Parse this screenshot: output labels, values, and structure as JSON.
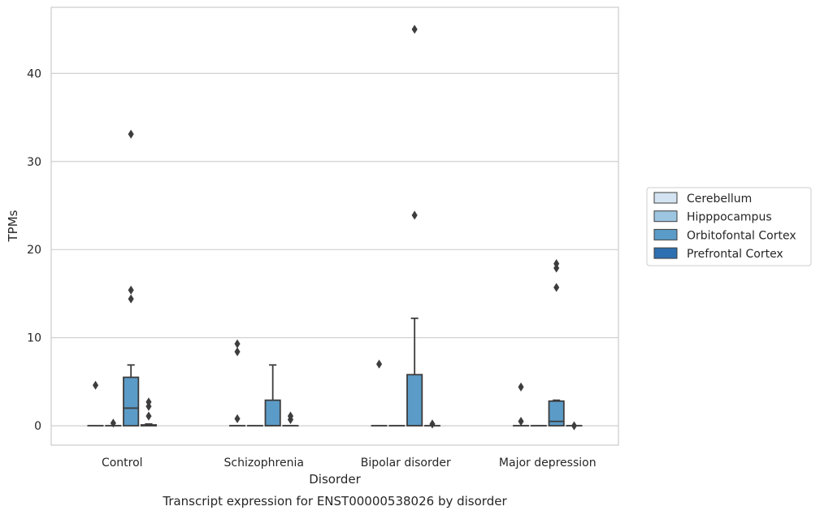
{
  "chart_data": {
    "type": "boxplot",
    "caption": "Transcript expression for ENST00000538026 by disorder",
    "xlabel": "Disorder",
    "ylabel": "TPMs",
    "ylim": [
      -2.2,
      47.5
    ],
    "yticks": [
      0,
      10,
      20,
      30,
      40
    ],
    "grid": "horizontal",
    "legend_placement": "right",
    "categories": [
      "Control",
      "Schizophrenia",
      "Bipolar disorder",
      "Major depression"
    ],
    "colors": {
      "Cerebellum": "#d3e3f1",
      "Hipppocampus": "#9dc6e0",
      "Orbitofontal Cortex": "#5b9bc7",
      "Prefrontal Cortex": "#2d6fb0"
    },
    "series": [
      {
        "name": "Cerebellum",
        "boxes": [
          {
            "q1": 0,
            "median": 0,
            "q3": 0,
            "whislo": 0,
            "whishi": 0,
            "fliers": [
              4.6
            ]
          },
          {
            "q1": 0,
            "median": 0,
            "q3": 0,
            "whislo": 0,
            "whishi": 0,
            "fliers": [
              0.8,
              8.4,
              9.3
            ]
          },
          {
            "q1": 0,
            "median": 0,
            "q3": 0,
            "whislo": 0,
            "whishi": 0,
            "fliers": [
              7.0
            ]
          },
          {
            "q1": 0,
            "median": 0,
            "q3": 0,
            "whislo": 0,
            "whishi": 0,
            "fliers": [
              0.5,
              4.4
            ]
          }
        ]
      },
      {
        "name": "Hipppocampus",
        "boxes": [
          {
            "q1": 0,
            "median": 0,
            "q3": 0,
            "whislo": 0,
            "whishi": 0,
            "fliers": [
              0.3
            ]
          },
          {
            "q1": 0,
            "median": 0,
            "q3": 0,
            "whislo": 0,
            "whishi": 0,
            "fliers": []
          },
          {
            "q1": 0,
            "median": 0,
            "q3": 0,
            "whislo": 0,
            "whishi": 0,
            "fliers": []
          },
          {
            "q1": 0,
            "median": 0,
            "q3": 0,
            "whislo": 0,
            "whishi": 0,
            "fliers": []
          }
        ]
      },
      {
        "name": "Orbitofontal Cortex",
        "boxes": [
          {
            "q1": 0,
            "median": 2.0,
            "q3": 5.5,
            "whislo": 0,
            "whishi": 6.9,
            "fliers": [
              14.4,
              15.4,
              33.1
            ]
          },
          {
            "q1": 0,
            "median": 0,
            "q3": 2.9,
            "whislo": 0,
            "whishi": 6.9,
            "fliers": []
          },
          {
            "q1": 0,
            "median": 0,
            "q3": 5.8,
            "whislo": 0,
            "whishi": 12.2,
            "fliers": [
              23.9,
              45.0
            ]
          },
          {
            "q1": 0,
            "median": 0.5,
            "q3": 2.8,
            "whislo": 0,
            "whishi": 2.9,
            "fliers": [
              15.7,
              17.9,
              18.4
            ]
          }
        ]
      },
      {
        "name": "Prefrontal Cortex",
        "boxes": [
          {
            "q1": 0,
            "median": 0,
            "q3": 0.1,
            "whislo": 0,
            "whishi": 0.2,
            "fliers": [
              1.1,
              2.2,
              2.7
            ]
          },
          {
            "q1": 0,
            "median": 0,
            "q3": 0,
            "whislo": 0,
            "whishi": 0,
            "fliers": [
              0.7,
              1.1
            ]
          },
          {
            "q1": 0,
            "median": 0,
            "q3": 0,
            "whislo": 0,
            "whishi": 0,
            "fliers": [
              0.2
            ]
          },
          {
            "q1": 0,
            "median": 0,
            "q3": 0,
            "whislo": 0,
            "whishi": 0,
            "fliers": [
              0.0
            ]
          }
        ]
      }
    ]
  }
}
